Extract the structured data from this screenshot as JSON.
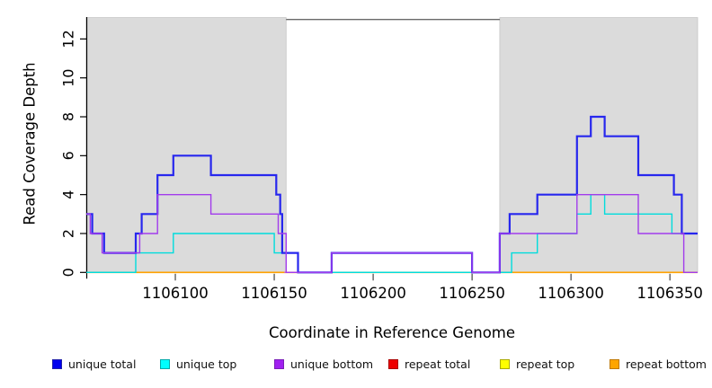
{
  "chart_data": {
    "type": "line",
    "subtype": "step-coverage",
    "title": "",
    "xlabel": "Coordinate in Reference Genome",
    "ylabel": "Read Coverage Depth",
    "xlim": [
      1106055,
      1106364
    ],
    "ylim": [
      0,
      13.2
    ],
    "x_ticks": [
      1106100,
      1106150,
      1106200,
      1106250,
      1106300,
      1106350
    ],
    "y_ticks": [
      0,
      2,
      4,
      6,
      8,
      10,
      12
    ],
    "grid": false,
    "legend_position": "bottom",
    "shaded_regions": [
      {
        "name": "repeat-region-left",
        "x1": 1106055,
        "x2": 1106156,
        "fill": "#DBDBDB"
      },
      {
        "name": "repeat-region-right",
        "x1": 1106264,
        "x2": 1106364,
        "fill": "#DBDBDB"
      }
    ],
    "gap_top_line": {
      "x1": 1106156,
      "x2": 1106264,
      "y": 13,
      "color": "#6A6A6A"
    },
    "series": [
      {
        "name": "repeat total",
        "color": "#EE0000",
        "width": 1.4,
        "steps": [
          [
            1106055,
            0
          ]
        ],
        "end": 1106364
      },
      {
        "name": "repeat top",
        "color": "#FFFF00",
        "width": 1.4,
        "steps": [
          [
            1106055,
            0
          ]
        ],
        "end": 1106364
      },
      {
        "name": "repeat bottom",
        "color": "#FFA200",
        "width": 1.7,
        "steps": [
          [
            1106055,
            0
          ]
        ],
        "end": 1106364
      },
      {
        "name": "unique top",
        "color": "#00DCDC",
        "width": 1.4,
        "steps": [
          [
            1106055,
            0
          ],
          [
            1106080,
            1
          ],
          [
            1106099,
            2
          ],
          [
            1106150,
            1
          ],
          [
            1106162,
            0
          ],
          [
            1106270,
            1
          ],
          [
            1106283,
            2
          ],
          [
            1106303,
            3
          ],
          [
            1106310,
            4
          ],
          [
            1106317,
            3
          ],
          [
            1106351,
            2
          ]
        ],
        "end": 1106364
      },
      {
        "name": "unique total",
        "color": "#2727EE",
        "width": 2.2,
        "steps": [
          [
            1106055,
            3
          ],
          [
            1106058,
            2
          ],
          [
            1106064,
            1
          ],
          [
            1106080,
            2
          ],
          [
            1106083,
            3
          ],
          [
            1106091,
            5
          ],
          [
            1106099,
            6
          ],
          [
            1106118,
            5
          ],
          [
            1106151,
            4
          ],
          [
            1106153,
            3
          ],
          [
            1106154,
            1
          ],
          [
            1106162,
            0
          ],
          [
            1106179,
            1
          ],
          [
            1106250,
            0
          ],
          [
            1106264,
            2
          ],
          [
            1106269,
            3
          ],
          [
            1106283,
            4
          ],
          [
            1106303,
            7
          ],
          [
            1106310,
            8
          ],
          [
            1106317,
            7
          ],
          [
            1106334,
            5
          ],
          [
            1106352,
            4
          ],
          [
            1106356,
            2
          ]
        ],
        "end": 1106364
      },
      {
        "name": "unique bottom",
        "color": "#A23CEC",
        "width": 1.4,
        "steps": [
          [
            1106055,
            3
          ],
          [
            1106057,
            2
          ],
          [
            1106063,
            1
          ],
          [
            1106082,
            2
          ],
          [
            1106091,
            4
          ],
          [
            1106118,
            3
          ],
          [
            1106152,
            2
          ],
          [
            1106156,
            0
          ],
          [
            1106179,
            1
          ],
          [
            1106250,
            0
          ],
          [
            1106264,
            2
          ],
          [
            1106303,
            4
          ],
          [
            1106334,
            2
          ],
          [
            1106357,
            0
          ]
        ],
        "end": 1106364
      }
    ],
    "baseline_artifacts": [
      {
        "x1": 1106055,
        "x2": 1106080,
        "color": "#7CC47C"
      },
      {
        "x1": 1106155,
        "x2": 1106162,
        "color": "#E06DA8"
      },
      {
        "x1": 1106179,
        "x2": 1106250,
        "color": "#7CC47C"
      },
      {
        "x1": 1106264,
        "x2": 1106270,
        "color": "#7CC47C"
      }
    ],
    "legend": [
      {
        "label": "unique total",
        "color": "#0000EE",
        "border": "#2222AA"
      },
      {
        "label": "unique top",
        "color": "#00FFFF",
        "border": "#00AAAA"
      },
      {
        "label": "unique bottom",
        "color": "#A020F0",
        "border": "#7A1FB8"
      },
      {
        "label": "repeat total",
        "color": "#EE0000",
        "border": "#AA0000"
      },
      {
        "label": "repeat top",
        "color": "#FFFF00",
        "border": "#AAAA00"
      },
      {
        "label": "repeat bottom",
        "color": "#FFA500",
        "border": "#C07800"
      }
    ]
  }
}
